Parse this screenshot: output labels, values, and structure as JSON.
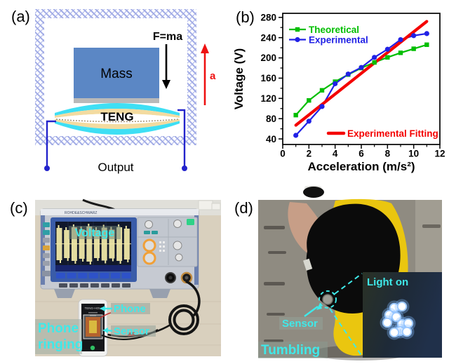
{
  "panel_a": {
    "label": "(a)",
    "force_label": "F=ma",
    "mass_label": "Mass",
    "teng_label": "TENG",
    "accel_label": "a",
    "output_label": "Output",
    "colors": {
      "mass": "#5B87C5",
      "mass_base": "#B9B9B9",
      "layer_cyan": "#3EDFF4",
      "layer_tan": "#F3DBA0",
      "wire": "#2323CC",
      "frame_hatch": "#A2ACE6",
      "accel_arrow": "#EE1111"
    }
  },
  "chart_data": {
    "type": "line",
    "panel_label": "(b)",
    "title": "",
    "xlabel": "Acceleration (m/s²)",
    "ylabel": "Voltage (V)",
    "xlim": [
      0,
      12
    ],
    "ylim": [
      29,
      288
    ],
    "xticks": [
      0,
      2,
      4,
      6,
      8,
      10,
      12
    ],
    "x_minor": [
      1,
      3,
      5,
      7,
      9,
      11
    ],
    "yticks": [
      40,
      80,
      120,
      160,
      200,
      240,
      280
    ],
    "y_minor_step": 20,
    "grid": false,
    "legend_position": "top-left",
    "x": [
      1,
      2,
      3,
      4,
      5,
      6,
      7,
      8,
      9,
      10,
      11
    ],
    "series": [
      {
        "name": "Theoretical",
        "color": "#00BE00",
        "marker": "square",
        "values": [
          87,
          116,
          136,
          153,
          167,
          180,
          191,
          201,
          210,
          218,
          226
        ]
      },
      {
        "name": "Experimental",
        "color": "#2121E6",
        "marker": "circle",
        "values": [
          47,
          75,
          104,
          149,
          168,
          181,
          201,
          217,
          236,
          244,
          248
        ]
      }
    ],
    "fitting": {
      "label": "Experimental Fitting",
      "color": "#F40000",
      "x1": 1,
      "y1": 67,
      "x2": 11,
      "y2": 272
    }
  },
  "panel_c": {
    "label": "(c)",
    "screen_label": "Voltage",
    "scope_brand": "ROHDE&SCHWARZ",
    "phone_label": "Phone",
    "sensor_label": "Sensor",
    "phone_screen_title": "TENG-HOU",
    "caption": [
      "Phone",
      "ringing"
    ],
    "label_color": "#3FE9E9",
    "waveform_bursts": 10,
    "waveform_heights": [
      46,
      40,
      48,
      42,
      50,
      40,
      47,
      41,
      48,
      44
    ]
  },
  "panel_d": {
    "label": "(d)",
    "inset_label": "Light on",
    "sensor_label": "Sensor",
    "caption": "Tumbling",
    "label_color": "#3FE9E9",
    "led_count": 10,
    "leds": [
      [
        242,
        179
      ],
      [
        253,
        177
      ],
      [
        235,
        189
      ],
      [
        245,
        192
      ],
      [
        232,
        200
      ],
      [
        253,
        202
      ],
      [
        262,
        201
      ],
      [
        250,
        212
      ],
      [
        260,
        213
      ],
      [
        242,
        214
      ]
    ]
  }
}
